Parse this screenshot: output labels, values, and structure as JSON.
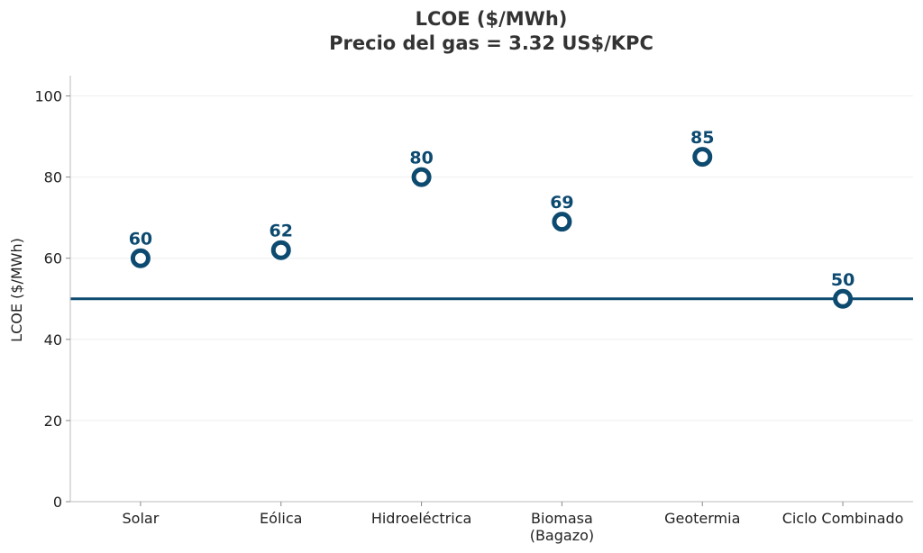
{
  "chart_data": {
    "type": "scatter",
    "title_lines": [
      "LCOE ($/MWh)",
      "Precio del gas = 3.32 US$/KPC"
    ],
    "xlabel": "",
    "ylabel": "LCOE ($/MWh)",
    "ylim": [
      0,
      105
    ],
    "yticks": [
      "0",
      "20",
      "40",
      "60",
      "80",
      "100"
    ],
    "categories": [
      [
        "Solar"
      ],
      [
        "Eólica"
      ],
      [
        "Hidroeléctrica"
      ],
      [
        "Biomasa",
        "(Bagazo)"
      ],
      [
        "Geotermia"
      ],
      [
        "Ciclo Combinado"
      ]
    ],
    "values": [
      60,
      62,
      80,
      69,
      85,
      50
    ],
    "data_labels": [
      "60",
      "62",
      "80",
      "69",
      "85",
      "50"
    ],
    "reference_line": {
      "y": 50
    },
    "grid": "horizontal",
    "colors": {
      "marker": "#0d4a70",
      "reference": "#0d4a70",
      "grid": "#eeeeee",
      "axis": "#bbbbbb"
    }
  }
}
